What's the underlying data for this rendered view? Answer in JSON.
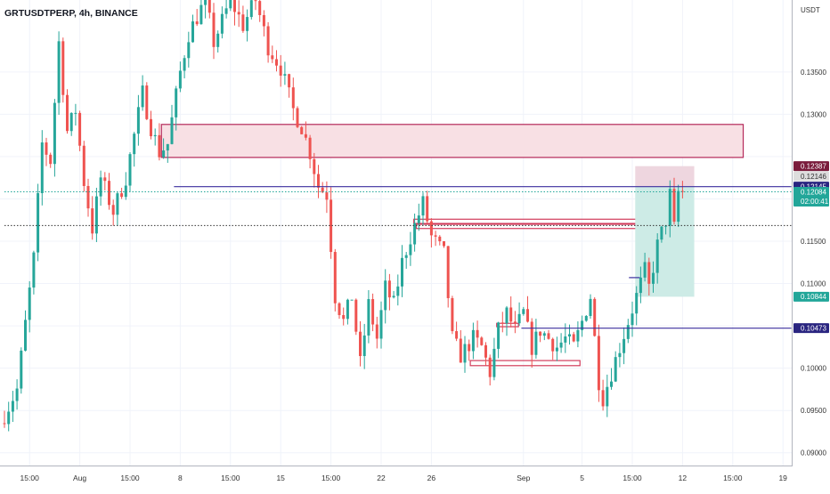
{
  "header": {
    "symbol_label": "GRTUSDTPERP, 4h, BINANCE"
  },
  "chart_data": {
    "type": "candlestick",
    "symbol": "GRTUSDTPERP",
    "interval": "4h",
    "exchange": "BINANCE",
    "price_axis_unit": "USDT",
    "y_range": [
      0.0885,
      0.1435
    ],
    "y_ticks": [
      0.09,
      0.095,
      0.1,
      0.105,
      0.11,
      0.115,
      0.12,
      0.125,
      0.13,
      0.135
    ],
    "y_tick_labels": [
      "0.09000",
      "0.09500",
      "0.10000",
      "",
      "0.11000",
      "0.11500",
      "",
      "",
      "0.13000",
      "0.13500"
    ],
    "x_tick_labels": [
      "15:00",
      "Aug",
      "15:00",
      "8",
      "15:00",
      "15",
      "15:00",
      "22",
      "26",
      "Sep",
      "5",
      "15:00",
      "12",
      "15:00",
      "19"
    ],
    "x_tick_bars": [
      6,
      18,
      30,
      42,
      54,
      66,
      78,
      90,
      102,
      124,
      138,
      150,
      162,
      174,
      186
    ],
    "num_bars": 188,
    "last_bar_index": 162,
    "price_path": [
      [
        0,
        0.0935
      ],
      [
        4,
        0.0975
      ],
      [
        8,
        0.113
      ],
      [
        10,
        0.1265
      ],
      [
        12,
        0.1245
      ],
      [
        14,
        0.1385
      ],
      [
        16,
        0.128
      ],
      [
        18,
        0.1305
      ],
      [
        20,
        0.122
      ],
      [
        22,
        0.1165
      ],
      [
        24,
        0.1225
      ],
      [
        27,
        0.1185
      ],
      [
        30,
        0.1225
      ],
      [
        34,
        0.1325
      ],
      [
        36,
        0.1285
      ],
      [
        38,
        0.1255
      ],
      [
        40,
        0.1265
      ],
      [
        43,
        0.135
      ],
      [
        45,
        0.1395
      ],
      [
        49,
        0.1435
      ],
      [
        51,
        0.1385
      ],
      [
        55,
        0.1435
      ],
      [
        58,
        0.1405
      ],
      [
        61,
        0.1435
      ],
      [
        64,
        0.138
      ],
      [
        67,
        0.1355
      ],
      [
        70,
        0.1305
      ],
      [
        72,
        0.1285
      ],
      [
        74,
        0.1255
      ],
      [
        76,
        0.1215
      ],
      [
        78,
        0.1205
      ],
      [
        80,
        0.1085
      ],
      [
        82,
        0.1055
      ],
      [
        84,
        0.1085
      ],
      [
        86,
        0.1005
      ],
      [
        88,
        0.1075
      ],
      [
        90,
        0.1035
      ],
      [
        92,
        0.1095
      ],
      [
        94,
        0.1075
      ],
      [
        96,
        0.1125
      ],
      [
        98,
        0.1155
      ],
      [
        101,
        0.1195
      ],
      [
        103,
        0.1155
      ],
      [
        106,
        0.1135
      ],
      [
        108,
        0.1035
      ],
      [
        110,
        0.1015
      ],
      [
        113,
        0.1035
      ],
      [
        115,
        0.1025
      ],
      [
        117,
        0.0995
      ],
      [
        119,
        0.1045
      ],
      [
        121,
        0.1065
      ],
      [
        123,
        0.1045
      ],
      [
        125,
        0.1065
      ],
      [
        127,
        0.1025
      ],
      [
        129,
        0.1045
      ],
      [
        131,
        0.1035
      ],
      [
        133,
        0.1025
      ],
      [
        135,
        0.1035
      ],
      [
        137,
        0.1025
      ],
      [
        139,
        0.1055
      ],
      [
        141,
        0.1085
      ],
      [
        143,
        0.0985
      ],
      [
        144,
        0.0965
      ],
      [
        146,
        0.0995
      ],
      [
        148,
        0.1025
      ],
      [
        150,
        0.1055
      ],
      [
        152,
        0.1085
      ],
      [
        154,
        0.1115
      ],
      [
        155,
        0.1095
      ],
      [
        157,
        0.1145
      ],
      [
        159,
        0.1175
      ],
      [
        160,
        0.1205
      ],
      [
        161,
        0.1165
      ],
      [
        162,
        0.1208
      ]
    ],
    "zones": [
      {
        "name": "upper-supply-zone",
        "bar_start": 37.5,
        "bar_end": 176.5,
        "price_high": 0.1288,
        "price_low": 0.1249,
        "fill": "#f8e0e4",
        "stroke": "#b5295a"
      },
      {
        "name": "mid-supply-zone",
        "bar_start": 97.8,
        "bar_end": 156.6,
        "price_high": 0.1176,
        "price_low": 0.1171,
        "fill": "none",
        "stroke": "#d23c5c"
      },
      {
        "name": "mid-demand-zone",
        "bar_start": 98.4,
        "bar_end": 156.6,
        "price_high": 0.117,
        "price_low": 0.1165,
        "fill": "none",
        "stroke": "#d23c5c"
      },
      {
        "name": "low-range-box",
        "bar_start": 111.3,
        "bar_end": 137.5,
        "price_high": 0.1009,
        "price_low": 0.1003,
        "fill": "none",
        "stroke": "#d23c5c"
      },
      {
        "name": "mid-range-box",
        "bar_start": 117.6,
        "bar_end": 122.8,
        "price_high": 0.1053,
        "price_low": 0.1049,
        "fill": "none",
        "stroke": "#d23c5c"
      }
    ],
    "position": {
      "bar_start": 150.7,
      "bar_end": 164.8,
      "entry_price": 0.12145,
      "stop_price": 0.12387,
      "target_price": 0.10844,
      "stop_fill": "#eed6df",
      "target_fill": "#cdebe6"
    },
    "horizontal_lines": [
      {
        "name": "entry-level-line",
        "price": 0.12145,
        "bar_start": 40.5,
        "bar_end": 188,
        "color": "#3b2f9e",
        "style": "solid"
      },
      {
        "name": "support-level-line",
        "price": 0.10473,
        "bar_start": 123.5,
        "bar_end": 188,
        "color": "#3b2f9e",
        "style": "solid"
      },
      {
        "name": "last-price-line",
        "price": 0.12084,
        "bar_start": 0,
        "bar_end": 188,
        "color": "#22a699",
        "style": "dotted"
      },
      {
        "name": "crosshair-line",
        "price": 0.11685,
        "bar_start": 0,
        "bar_end": 188,
        "color": "#333333",
        "style": "dotted"
      },
      {
        "name": "small-mark-line",
        "price": 0.1107,
        "bar_start": 149.2,
        "bar_end": 151.8,
        "color": "#3b2f9e",
        "style": "solid"
      }
    ],
    "price_labels": [
      {
        "name": "stop-price-label",
        "text": "0.12387",
        "price": 0.12387,
        "bg": "#7a1c3c",
        "fg": "#ffffff"
      },
      {
        "name": "marker-price-label",
        "text": "0.12146",
        "price": 0.12268,
        "bg": "#dddddd",
        "fg": "#333333"
      },
      {
        "name": "entry-price-label",
        "text": "0.12145",
        "price": 0.12145,
        "bg": "#2a2580",
        "fg": "#ffffff"
      },
      {
        "name": "last-price-label",
        "text": "0.12084",
        "subtext": "02:00:41",
        "price": 0.12084,
        "bg": "#22a699",
        "fg": "#ffffff"
      },
      {
        "name": "target-price-label",
        "text": "0.10844",
        "price": 0.10844,
        "bg": "#22a699",
        "fg": "#ffffff"
      },
      {
        "name": "support-price-label",
        "text": "0.10473",
        "price": 0.10473,
        "bg": "#2a2580",
        "fg": "#ffffff"
      }
    ],
    "colors": {
      "up": "#26a69a",
      "down": "#ef5350"
    }
  }
}
